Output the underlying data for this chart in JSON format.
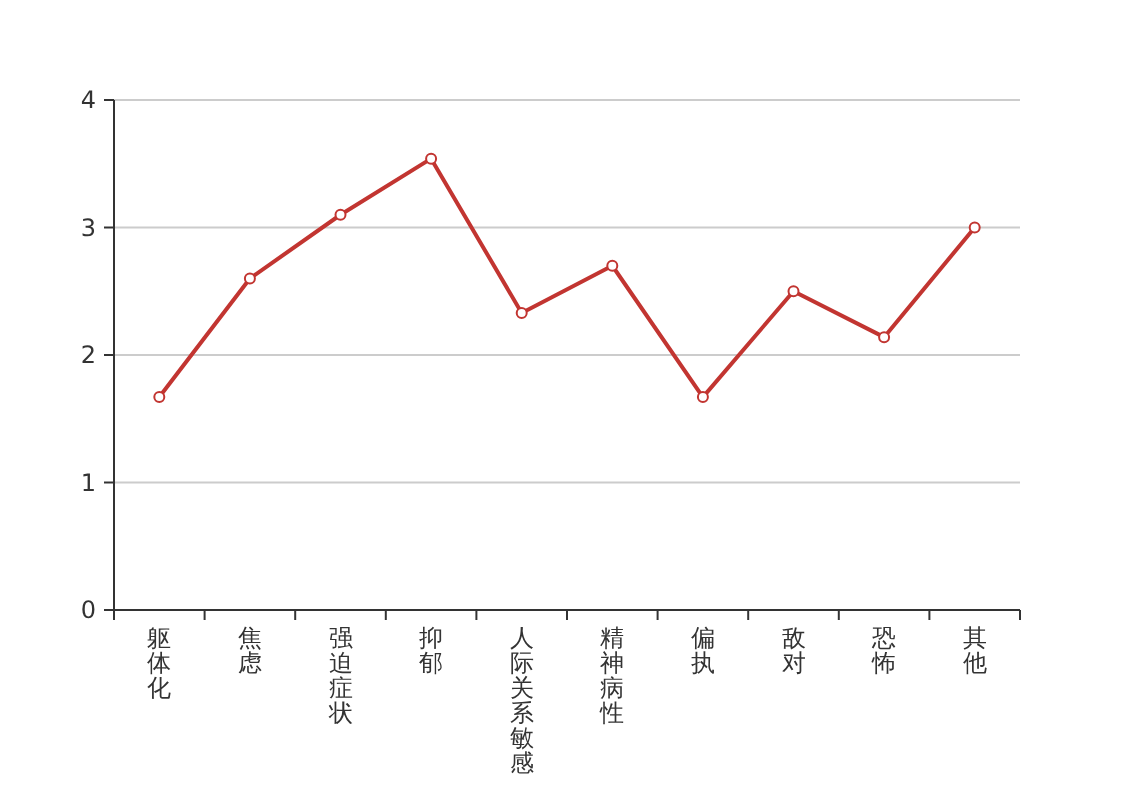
{
  "chart_data": {
    "type": "line",
    "categories": [
      "躯体化",
      "焦虑",
      "强迫症状",
      "抑郁",
      "人际关系敏感",
      "精神病性",
      "偏执",
      "敌对",
      "恐怖",
      "其他"
    ],
    "series": [
      {
        "color": "#c23531",
        "values": [
          1.67,
          2.6,
          3.1,
          3.54,
          2.33,
          2.7,
          1.67,
          2.5,
          2.14,
          3.0
        ]
      }
    ],
    "ylim": [
      0,
      4
    ],
    "yticks": [
      0,
      1,
      2,
      3,
      4
    ],
    "grid": "y",
    "marker": "circle",
    "line_style": "solid"
  }
}
